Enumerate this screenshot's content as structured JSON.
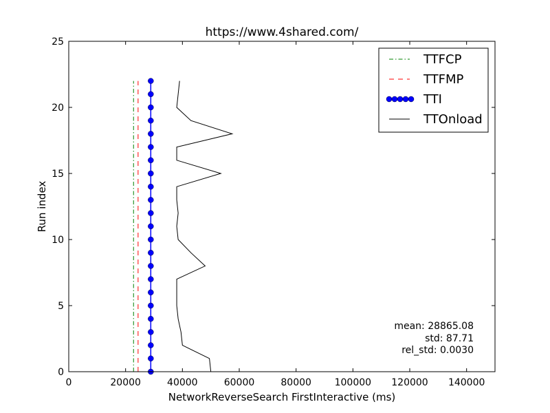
{
  "chart_data": {
    "type": "line",
    "title": "https://www.4shared.com/",
    "xlabel": "NetworkReverseSearch FirstInteractive (ms)",
    "ylabel": "Run index",
    "xlim": [
      0,
      150000
    ],
    "ylim": [
      0,
      25
    ],
    "x_ticks": [
      0,
      20000,
      40000,
      60000,
      80000,
      100000,
      120000,
      140000
    ],
    "y_ticks": [
      0,
      5,
      10,
      15,
      20,
      25
    ],
    "legend_position": "top-right",
    "grid": false,
    "series": [
      {
        "name": "TTFCP",
        "color": "#008000",
        "style": "dashdot",
        "x": [
          22800,
          22800,
          22800,
          22800,
          22800,
          22800,
          22800,
          22800,
          22800,
          22800,
          22800,
          22800,
          22800,
          22800,
          22800,
          22800,
          22800,
          22800,
          22800,
          22800,
          22800,
          22800,
          22800
        ],
        "y": [
          0,
          1,
          2,
          3,
          4,
          5,
          6,
          7,
          8,
          9,
          10,
          11,
          12,
          13,
          14,
          15,
          16,
          17,
          18,
          19,
          20,
          21,
          22
        ]
      },
      {
        "name": "TTFMP",
        "color": "#ff0000",
        "style": "dashed",
        "x": [
          24400,
          24400,
          24400,
          24400,
          24400,
          24400,
          24400,
          24400,
          24400,
          24400,
          24400,
          24400,
          24400,
          24400,
          24400,
          24400,
          24400,
          24400,
          24400,
          24400,
          24400,
          24400,
          24400
        ],
        "y": [
          0,
          1,
          2,
          3,
          4,
          5,
          6,
          7,
          8,
          9,
          10,
          11,
          12,
          13,
          14,
          15,
          16,
          17,
          18,
          19,
          20,
          21,
          22
        ]
      },
      {
        "name": "TTI",
        "color": "#0000ff",
        "style": "solid-markers",
        "x": [
          28865,
          28865,
          28865,
          28865,
          28865,
          28865,
          28865,
          28865,
          28865,
          28865,
          28865,
          28865,
          28865,
          28865,
          28865,
          28865,
          28865,
          28865,
          28865,
          28865,
          28865,
          28865,
          28865
        ],
        "y": [
          0,
          1,
          2,
          3,
          4,
          5,
          6,
          7,
          8,
          9,
          10,
          11,
          12,
          13,
          14,
          15,
          16,
          17,
          18,
          19,
          20,
          21,
          22
        ]
      },
      {
        "name": "TTOnload",
        "color": "#000000",
        "style": "solid",
        "x": [
          50000,
          49500,
          40000,
          39500,
          38500,
          38000,
          38000,
          38000,
          48000,
          43000,
          38500,
          38000,
          38500,
          38000,
          38000,
          53500,
          38000,
          38000,
          57500,
          43000,
          38000,
          38500,
          39000
        ],
        "y": [
          0,
          1,
          2,
          3,
          4,
          5,
          6,
          7,
          8,
          9,
          10,
          11,
          12,
          13,
          14,
          15,
          16,
          17,
          18,
          19,
          20,
          21,
          22
        ]
      }
    ],
    "stats": {
      "mean": "mean: 28865.08",
      "std": "std: 87.71",
      "rel_std": "rel_std: 0.0030"
    }
  }
}
